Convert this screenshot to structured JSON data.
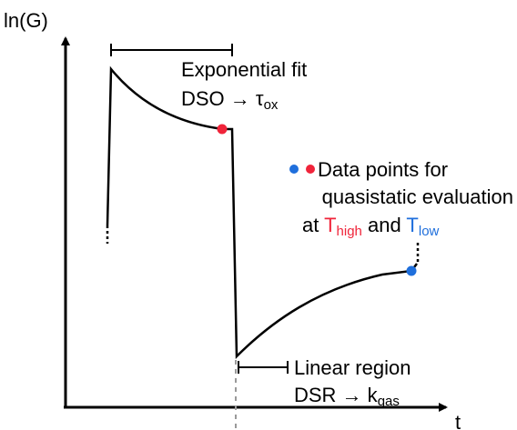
{
  "axes": {
    "y_label": "ln(G)",
    "x_label": "t"
  },
  "exponential_fit": {
    "title": "Exponential fit",
    "line2_prefix": "DSO → τ",
    "line2_sub": "ox"
  },
  "data_points_note": {
    "line1": "Data points for",
    "line2": "quasistatic evaluation",
    "line3_prefix": "at ",
    "t_high_main": "T",
    "t_high_sub": "high",
    "and_word": " and ",
    "t_low_main": "T",
    "t_low_sub": "low"
  },
  "linear_region": {
    "title": "Linear region",
    "line2_prefix": "DSR → k",
    "line2_sub": "gas"
  },
  "colors": {
    "high": "#f0243a",
    "low": "#1f6fdc",
    "line": "#000000",
    "dashed": "#9a9a9a"
  }
}
